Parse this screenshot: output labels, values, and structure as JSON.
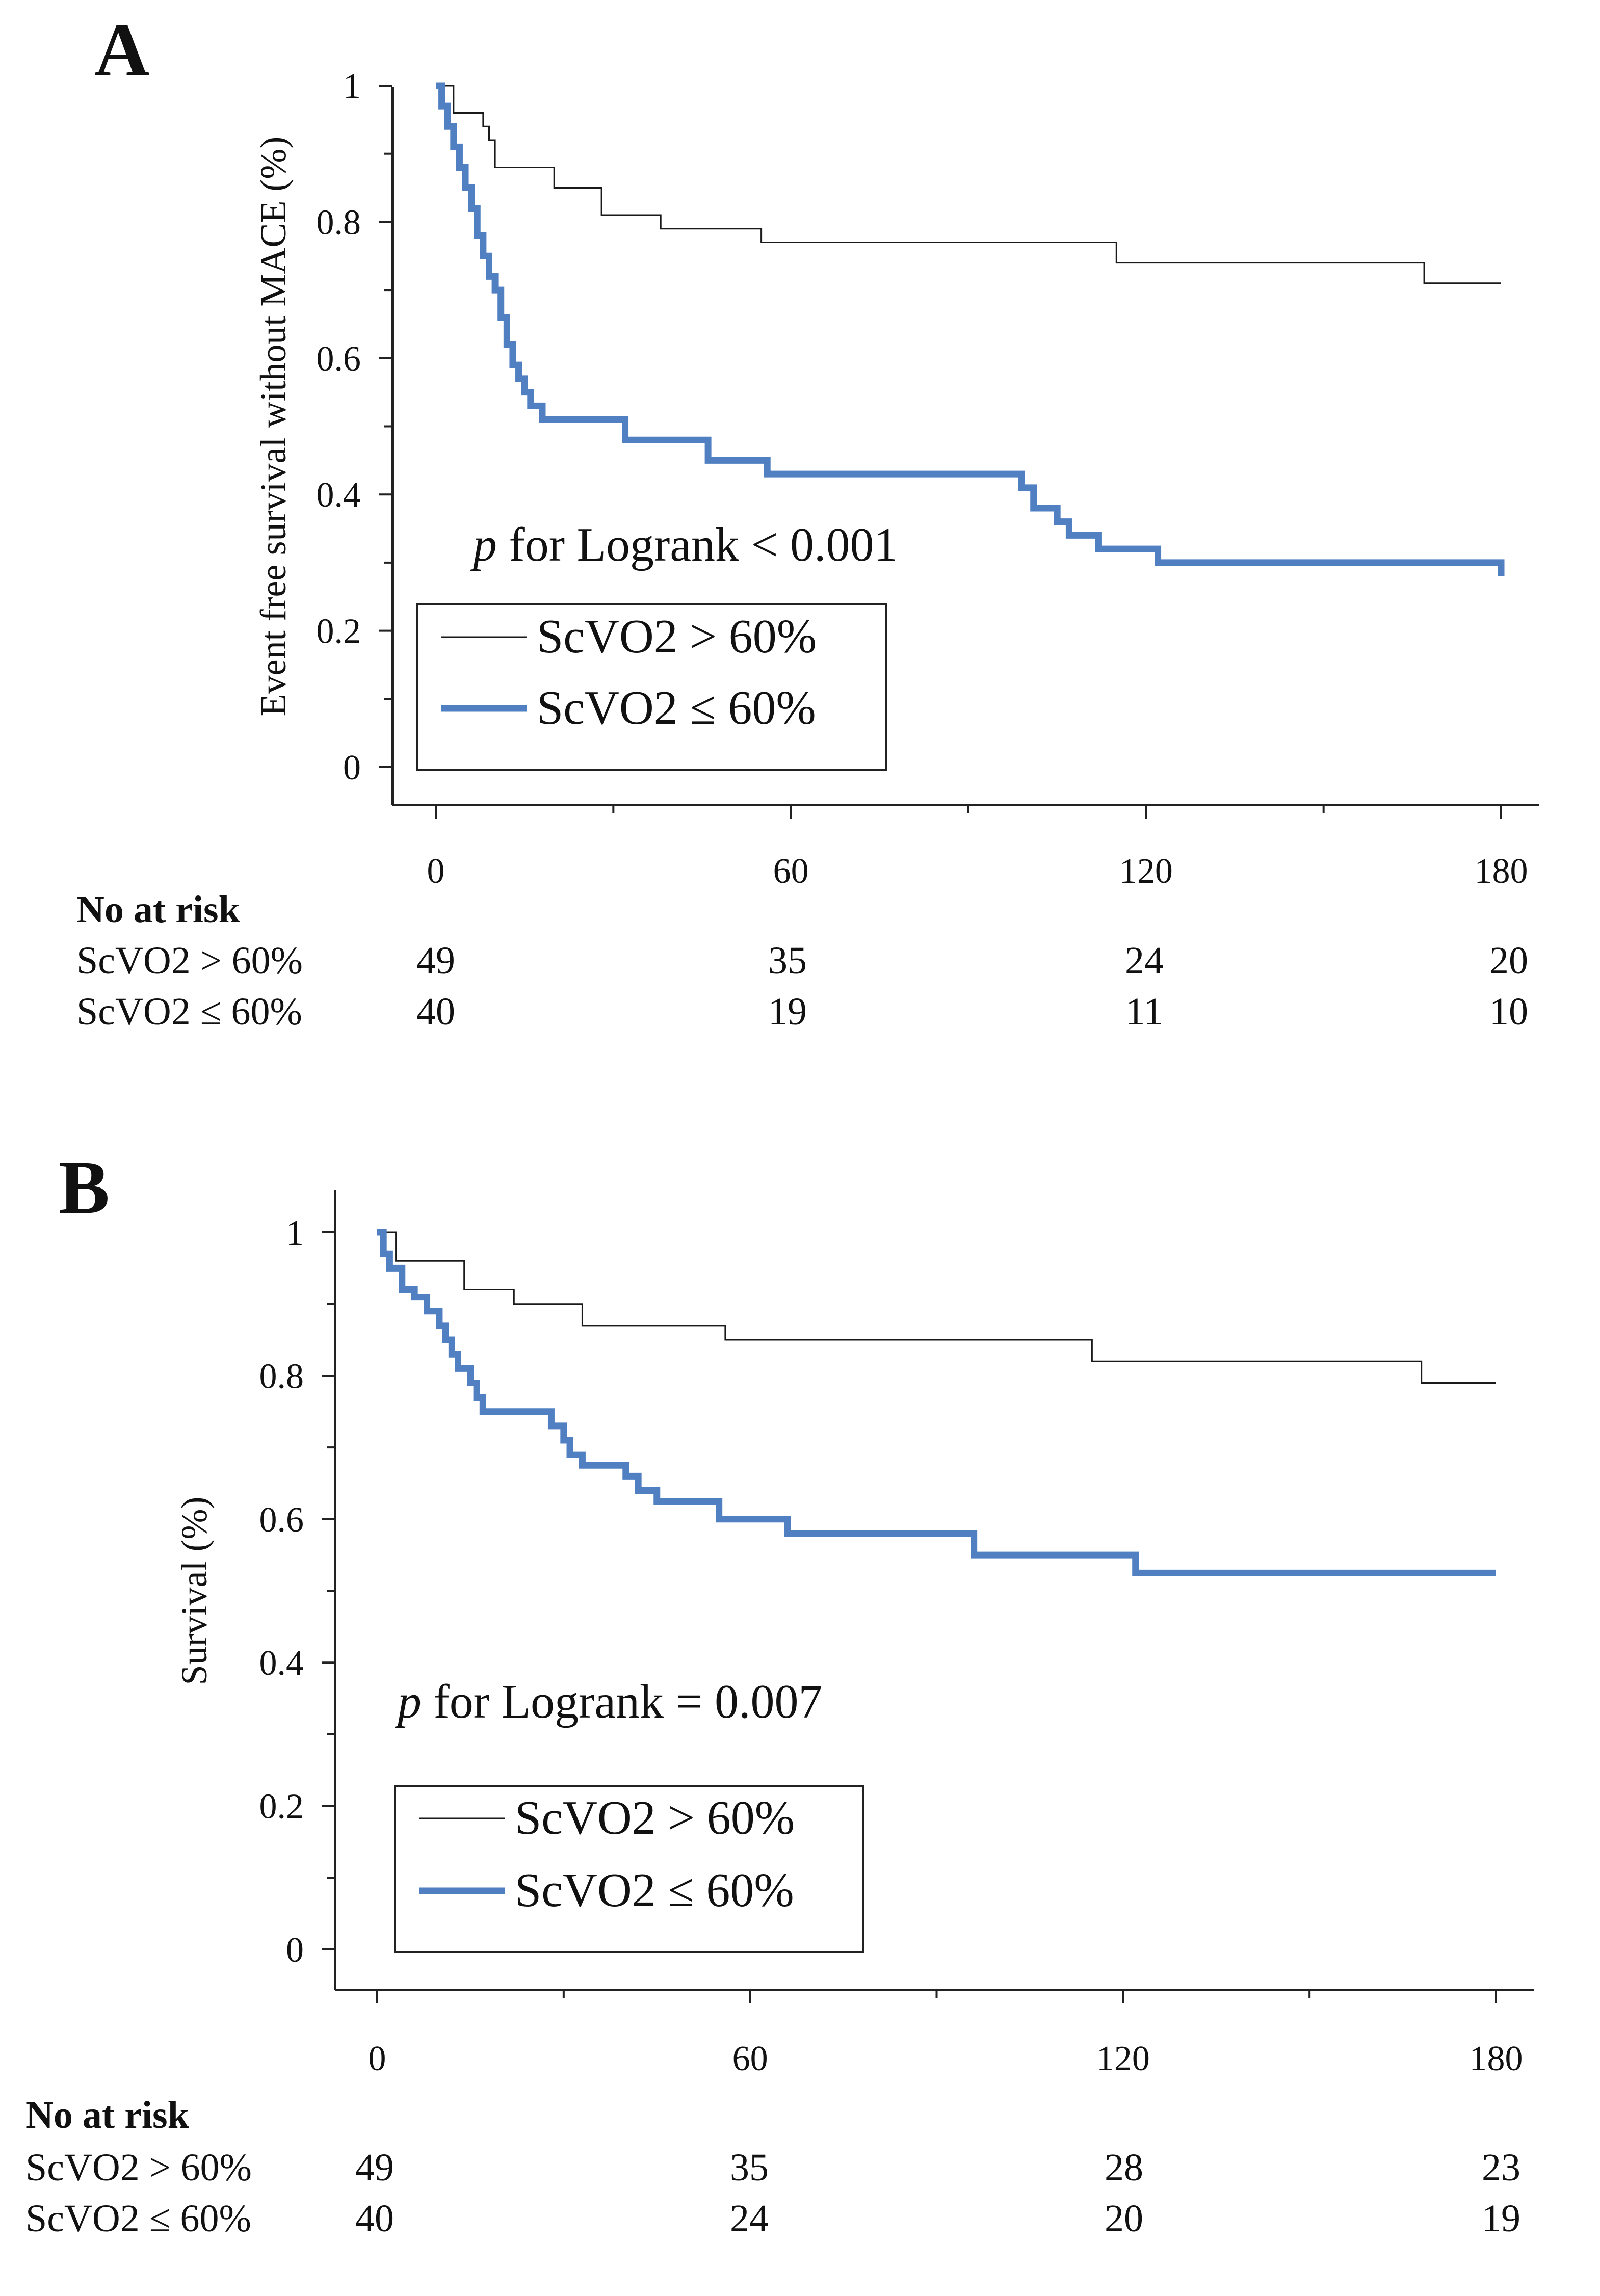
{
  "chart_data": [
    {
      "type": "line",
      "panel": "A",
      "ylabel": "Event free survival without MACE (%)",
      "xlabel": "",
      "xlim": [
        0,
        180
      ],
      "ylim": [
        0,
        1
      ],
      "xticks": [
        "0",
        "60",
        "120",
        "180"
      ],
      "yticks": [
        "0",
        "0.2",
        "0.4",
        "0.6",
        "0.8",
        "1"
      ],
      "annotation_italic": "p",
      "annotation_rest": " for Logrank < 0.001",
      "legend": [
        "ScVO2 > 60%",
        "ScVO2 ≤ 60%"
      ],
      "series": [
        {
          "name": "ScVO2 > 60%",
          "color": "#1a1a1a",
          "x": [
            0,
            3,
            6,
            8,
            9,
            10,
            14,
            20,
            22,
            28,
            33,
            38,
            55,
            60,
            115,
            120,
            167,
            170,
            180
          ],
          "y": [
            1.0,
            0.96,
            0.96,
            0.94,
            0.92,
            0.88,
            0.88,
            0.85,
            0.85,
            0.81,
            0.81,
            0.79,
            0.77,
            0.77,
            0.74,
            0.74,
            0.71,
            0.71,
            0.71
          ]
        },
        {
          "name": "ScVO2 ≤ 60%",
          "color": "#5080c2",
          "x": [
            0,
            1,
            2,
            3,
            4,
            5,
            6,
            7,
            8,
            9,
            10,
            11,
            12,
            13,
            14,
            15,
            16,
            18,
            32,
            46,
            56,
            95,
            99,
            101,
            105,
            107,
            112,
            122,
            180
          ],
          "y": [
            1.0,
            0.97,
            0.94,
            0.91,
            0.88,
            0.85,
            0.82,
            0.78,
            0.75,
            0.72,
            0.7,
            0.66,
            0.62,
            0.59,
            0.57,
            0.55,
            0.53,
            0.51,
            0.48,
            0.45,
            0.43,
            0.43,
            0.41,
            0.38,
            0.36,
            0.34,
            0.32,
            0.3,
            0.28
          ]
        }
      ],
      "risk_table": {
        "title": "No at risk",
        "times": [
          0,
          60,
          120,
          180
        ],
        "rows": [
          {
            "label": "ScVO2 > 60%",
            "values": [
              "49",
              "35",
              "24",
              "20"
            ]
          },
          {
            "label": "ScVO2 ≤ 60%",
            "values": [
              "40",
              "19",
              "11",
              "10"
            ]
          }
        ]
      }
    },
    {
      "type": "line",
      "panel": "B",
      "ylabel": "Survival (%)",
      "xlabel": "",
      "xlim": [
        0,
        180
      ],
      "ylim": [
        0,
        1
      ],
      "xticks": [
        "0",
        "60",
        "120",
        "180"
      ],
      "yticks": [
        "0",
        "0.2",
        "0.4",
        "0.6",
        "0.8",
        "1"
      ],
      "annotation_italic": "p",
      "annotation_rest": " for Logrank = 0.007",
      "legend": [
        "ScVO2 > 60%",
        "ScVO2 ≤ 60%"
      ],
      "series": [
        {
          "name": "ScVO2 > 60%",
          "color": "#1a1a1a",
          "x": [
            0,
            3,
            9,
            14,
            22,
            33,
            56,
            60,
            115,
            120,
            168,
            180
          ],
          "y": [
            1.0,
            0.96,
            0.96,
            0.92,
            0.9,
            0.87,
            0.85,
            0.85,
            0.82,
            0.82,
            0.79,
            0.79
          ],
          "_note": ""
        },
        {
          "name": "ScVO2 ≤ 60%",
          "color": "#5080c2",
          "x": [
            0,
            1,
            2,
            4,
            6,
            8,
            10,
            11,
            12,
            13,
            15,
            16,
            17,
            20,
            27,
            28,
            30,
            31,
            33,
            40,
            42,
            45,
            55,
            66,
            96,
            122,
            180
          ],
          "y": [
            1.0,
            0.97,
            0.95,
            0.92,
            0.91,
            0.89,
            0.87,
            0.85,
            0.83,
            0.81,
            0.79,
            0.77,
            0.75,
            0.75,
            0.75,
            0.73,
            0.71,
            0.69,
            0.675,
            0.66,
            0.64,
            0.625,
            0.6,
            0.58,
            0.55,
            0.525,
            0.525
          ]
        }
      ],
      "risk_table": {
        "title": "No at risk",
        "times": [
          0,
          60,
          120,
          180
        ],
        "rows": [
          {
            "label": "ScVO2 > 60%",
            "values": [
              "49",
              "35",
              "28",
              "23"
            ]
          },
          {
            "label": "ScVO2 ≤ 60%",
            "values": [
              "40",
              "24",
              "20",
              "19"
            ]
          }
        ]
      }
    }
  ]
}
